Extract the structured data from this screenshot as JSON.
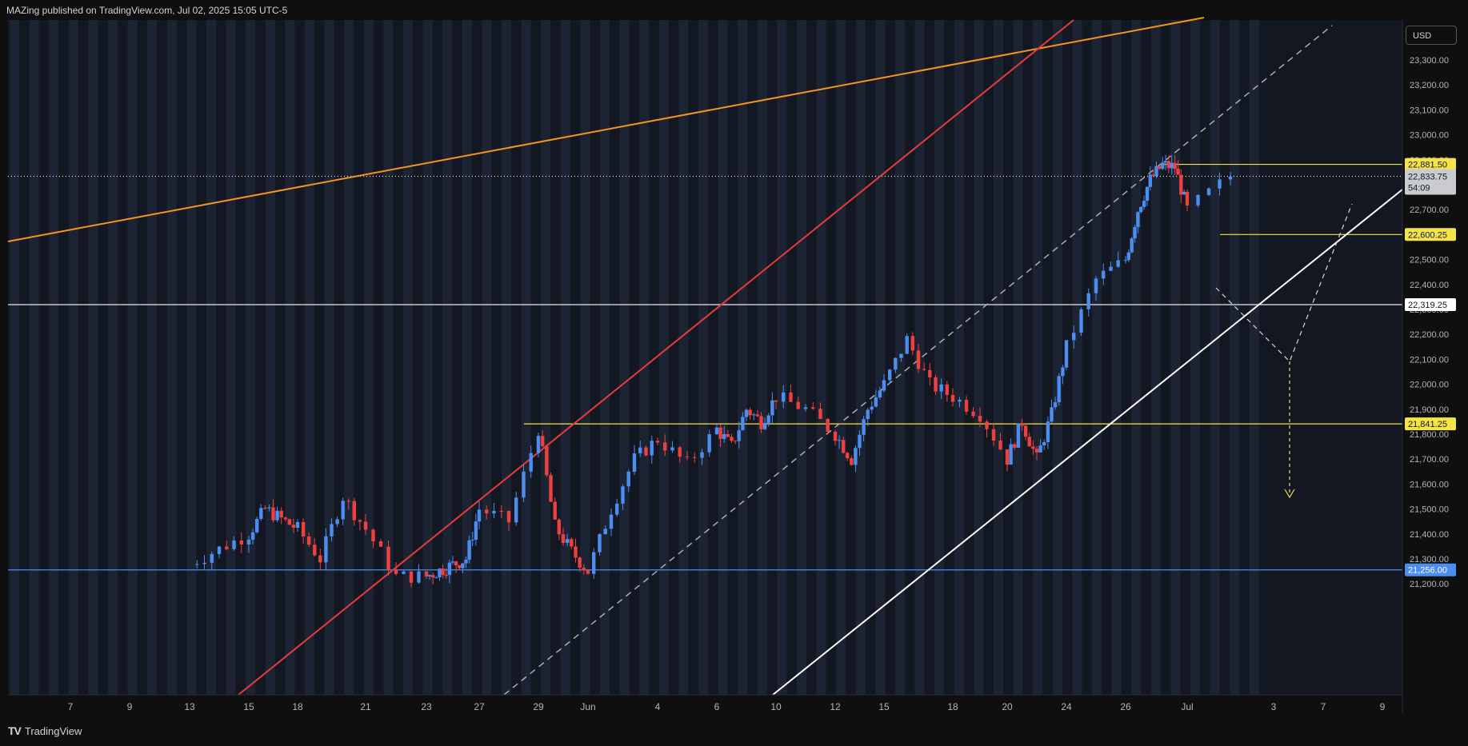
{
  "header": {
    "published": "MAZing published on TradingView.com, Jul 02, 2025 15:05 UTC-5"
  },
  "footer": {
    "brand": "TradingView"
  },
  "currency": "USD",
  "colors": {
    "background": "#131722",
    "up_candle": "#4c8df0",
    "down_candle": "#ef4040",
    "orange_line": "#f7941d",
    "red_line": "#e93b3b",
    "yellow_level": "#f5e34a",
    "blue_level": "#4b8df0",
    "white_line": "#ffffff"
  },
  "chart_data": {
    "type": "candlestick",
    "ylim": [
      21150,
      23400
    ],
    "y_ticks": [
      "23,300.00",
      "23,200.00",
      "23,100.00",
      "23,000.00",
      "22,900.00",
      "22,700.00",
      "22,500.00",
      "22,400.00",
      "22,300.00",
      "22,200.00",
      "22,100.00",
      "22,000.00",
      "21,900.00",
      "21,800.00",
      "21,700.00",
      "21,600.00",
      "21,500.00",
      "21,400.00",
      "21,300.00",
      "21,200.00"
    ],
    "x_ticks": [
      "7",
      "9",
      "13",
      "15",
      "18",
      "21",
      "23",
      "27",
      "29",
      "Jun",
      "4",
      "6",
      "10",
      "12",
      "15",
      "18",
      "20",
      "24",
      "26",
      "Jul",
      "3",
      "7",
      "9"
    ],
    "current_price": {
      "label": "22,833.75",
      "countdown": "54:09",
      "value": 22833.75
    },
    "levels": [
      {
        "label": "22,881.50",
        "value": 22881.5,
        "kind": "yellow"
      },
      {
        "label": "22,600.25",
        "value": 22600.25,
        "kind": "yellow"
      },
      {
        "label": "22,319.25",
        "value": 22319.25,
        "kind": "white"
      },
      {
        "label": "21,841.25",
        "value": 21841.25,
        "kind": "yellow"
      },
      {
        "label": "21,256.00",
        "value": 21256.0,
        "kind": "blue"
      }
    ],
    "anchors": [
      [
        "May 13",
        21280
      ],
      [
        "May 15",
        21400
      ],
      [
        "May 16",
        21500
      ],
      [
        "May 18",
        21420
      ],
      [
        "May 19",
        21300
      ],
      [
        "May 20",
        21550
      ],
      [
        "May 21",
        21420
      ],
      [
        "May 22",
        21230
      ],
      [
        "May 23",
        21230
      ],
      [
        "May 26",
        21300
      ],
      [
        "May 27",
        21500
      ],
      [
        "May 28",
        21450
      ],
      [
        "May 29",
        21820
      ],
      [
        "May 30",
        21430
      ],
      [
        "May 31",
        21330
      ],
      [
        "Jun 1",
        21250
      ],
      [
        "Jun 2",
        21500
      ],
      [
        "Jun 3",
        21700
      ],
      [
        "Jun 4",
        21780
      ],
      [
        "Jun 5",
        21680
      ],
      [
        "Jun 6",
        21820
      ],
      [
        "Jun 7",
        21750
      ],
      [
        "Jun 8",
        21900
      ],
      [
        "Jun 9",
        21850
      ],
      [
        "Jun 10",
        21950
      ],
      [
        "Jun 11",
        21900
      ],
      [
        "Jun 12",
        21800
      ],
      [
        "Jun 13",
        21700
      ],
      [
        "Jun 14",
        21900
      ],
      [
        "Jun 15",
        22000
      ],
      [
        "Jun 16",
        22180
      ],
      [
        "Jun 17",
        22000
      ],
      [
        "Jun 18",
        21950
      ],
      [
        "Jun 19",
        21880
      ],
      [
        "Jun 20",
        21700
      ],
      [
        "Jun 21",
        21850
      ],
      [
        "Jun 22",
        21700
      ],
      [
        "Jun 23",
        21880
      ],
      [
        "Jun 24",
        22150
      ],
      [
        "Jun 25",
        22420
      ],
      [
        "Jun 26",
        22500
      ],
      [
        "Jun 27",
        22700
      ],
      [
        "Jun 28",
        22820
      ],
      [
        "Jun 29",
        22880
      ],
      [
        "Jun 30",
        22870
      ],
      [
        "Jul 1",
        22700
      ],
      [
        "Jul 2",
        22833.75
      ]
    ]
  }
}
